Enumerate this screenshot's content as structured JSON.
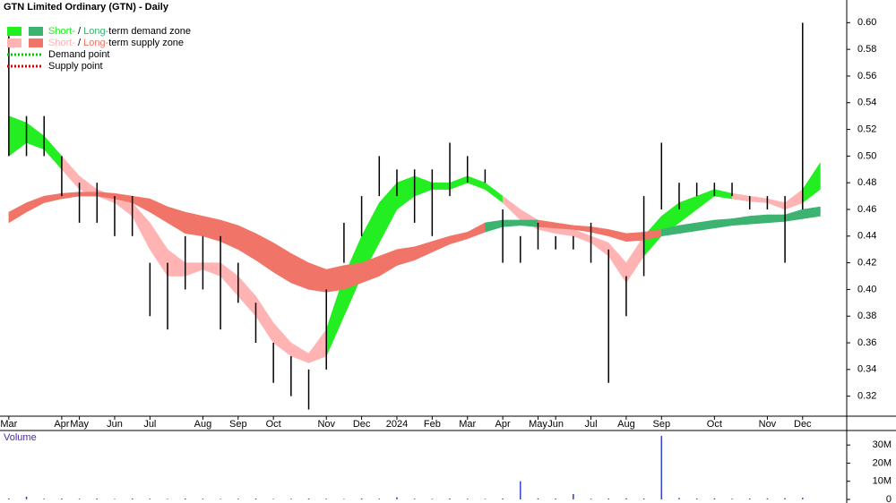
{
  "chart_data": {
    "type": "stock",
    "title": "GTN Limited Ordinary (GTN) - Daily",
    "categories": [
      "Mar",
      null,
      null,
      "Apr",
      "May",
      null,
      "Jun",
      null,
      "Jul",
      null,
      null,
      "Aug",
      null,
      "Sep",
      null,
      "Oct",
      null,
      null,
      "Nov",
      null,
      "Dec",
      null,
      "2024",
      null,
      "Feb",
      null,
      "Mar",
      null,
      "Apr",
      null,
      "May",
      "Jun",
      null,
      "Jul",
      null,
      "Aug",
      null,
      "Sep",
      null,
      null,
      "Oct",
      null,
      null,
      "Nov",
      null,
      "Dec",
      null,
      null
    ],
    "high": [
      0.59,
      0.53,
      0.53,
      0.5,
      0.48,
      0.48,
      0.47,
      0.47,
      0.42,
      0.42,
      0.44,
      0.44,
      0.44,
      0.42,
      0.39,
      0.36,
      0.35,
      0.34,
      0.4,
      0.45,
      0.47,
      0.5,
      0.49,
      0.49,
      0.49,
      0.51,
      0.5,
      0.49,
      0.46,
      0.44,
      0.45,
      0.44,
      0.44,
      0.45,
      0.43,
      0.41,
      0.47,
      0.51,
      0.48,
      0.48,
      0.48,
      0.48,
      0.47,
      0.47,
      0.47,
      0.6,
      null,
      null
    ],
    "low": [
      0.5,
      0.5,
      0.5,
      0.47,
      0.45,
      0.45,
      0.44,
      0.44,
      0.38,
      0.37,
      0.4,
      0.4,
      0.37,
      0.39,
      0.36,
      0.33,
      0.32,
      0.31,
      0.34,
      0.42,
      0.44,
      0.47,
      0.47,
      0.45,
      0.44,
      0.47,
      0.48,
      0.48,
      0.42,
      0.42,
      0.43,
      0.43,
      0.43,
      0.42,
      0.33,
      0.38,
      0.41,
      0.46,
      0.46,
      0.47,
      0.47,
      0.47,
      0.46,
      0.46,
      0.42,
      0.46,
      null,
      null
    ],
    "bar_color": "#000000",
    "ylim": [
      0.305,
      0.617
    ],
    "yticks": [
      0.32,
      0.34,
      0.36,
      0.38,
      {
        "value": 0.4,
        "label": "0.40"
      },
      0.42,
      0.44,
      0.46,
      0.48,
      {
        "value": 0.5,
        "label": "0.50"
      },
      0.52,
      0.54,
      0.56,
      0.58,
      {
        "value": 0.6,
        "label": "0.60"
      }
    ],
    "zones": [
      {
        "label": "Short-",
        "demand_color": "#22ee22",
        "supply_color": "#ffb3b3",
        "upper": [
          0.53,
          0.525,
          0.515,
          0.5,
          0.485,
          0.475,
          0.47,
          0.465,
          0.45,
          0.43,
          0.42,
          0.42,
          0.42,
          0.41,
          0.395,
          0.375,
          0.36,
          0.352,
          0.37,
          0.41,
          0.44,
          0.465,
          0.48,
          0.485,
          0.48,
          0.48,
          0.485,
          0.48,
          0.47,
          0.46,
          0.452,
          0.447,
          0.445,
          0.44,
          0.435,
          0.42,
          0.44,
          0.455,
          0.465,
          0.47,
          0.475,
          0.472,
          0.47,
          0.468,
          0.465,
          0.475,
          0.495,
          null
        ],
        "lower": [
          0.5,
          0.51,
          0.505,
          0.49,
          0.475,
          0.47,
          0.465,
          0.455,
          0.43,
          0.41,
          0.41,
          0.415,
          0.41,
          0.395,
          0.38,
          0.36,
          0.35,
          0.345,
          0.35,
          0.38,
          0.41,
          0.435,
          0.46,
          0.47,
          0.475,
          0.475,
          0.48,
          0.475,
          0.465,
          0.452,
          0.445,
          0.442,
          0.44,
          0.435,
          0.425,
          0.405,
          0.425,
          0.44,
          0.45,
          0.46,
          0.47,
          0.468,
          0.466,
          0.465,
          0.46,
          0.465,
          0.475,
          null
        ],
        "demand": [
          true,
          true,
          true,
          false,
          false,
          false,
          false,
          false,
          false,
          false,
          false,
          false,
          false,
          false,
          false,
          false,
          false,
          false,
          true,
          true,
          true,
          true,
          true,
          true,
          true,
          true,
          true,
          true,
          false,
          false,
          false,
          false,
          false,
          false,
          false,
          false,
          true,
          true,
          true,
          true,
          true,
          false,
          false,
          false,
          false,
          true,
          true,
          null
        ]
      },
      {
        "label": "Long-",
        "demand_color": "#3cb371",
        "supply_color": "#f07468",
        "upper": [
          0.458,
          0.465,
          0.47,
          0.472,
          0.473,
          0.473,
          0.472,
          0.47,
          0.468,
          0.462,
          0.458,
          0.455,
          0.452,
          0.448,
          0.442,
          0.435,
          0.427,
          0.42,
          0.415,
          0.418,
          0.42,
          0.425,
          0.43,
          0.432,
          0.436,
          0.44,
          0.443,
          0.45,
          0.452,
          0.452,
          0.452,
          0.45,
          0.448,
          0.447,
          0.445,
          0.442,
          0.443,
          0.445,
          0.448,
          0.45,
          0.452,
          0.453,
          0.455,
          0.456,
          0.456,
          0.46,
          0.462,
          null
        ],
        "lower": [
          0.45,
          0.458,
          0.465,
          0.468,
          0.47,
          0.47,
          0.468,
          0.465,
          0.458,
          0.45,
          0.442,
          0.44,
          0.436,
          0.43,
          0.422,
          0.413,
          0.405,
          0.4,
          0.398,
          0.4,
          0.405,
          0.41,
          0.418,
          0.422,
          0.428,
          0.434,
          0.438,
          0.443,
          0.447,
          0.448,
          0.447,
          0.446,
          0.445,
          0.443,
          0.44,
          0.436,
          0.437,
          0.44,
          0.442,
          0.444,
          0.446,
          0.448,
          0.449,
          0.45,
          0.451,
          0.453,
          0.455,
          null
        ],
        "demand": [
          false,
          false,
          false,
          false,
          false,
          false,
          false,
          false,
          false,
          false,
          false,
          false,
          false,
          false,
          false,
          false,
          false,
          false,
          false,
          false,
          false,
          false,
          false,
          false,
          false,
          false,
          false,
          true,
          true,
          true,
          false,
          false,
          false,
          false,
          false,
          false,
          false,
          true,
          true,
          true,
          true,
          true,
          true,
          true,
          true,
          true,
          true,
          null
        ]
      }
    ],
    "legend_sep": " / ",
    "demand_text": "term demand zone",
    "supply_text": "term supply zone",
    "points": [
      {
        "label": "Demand point",
        "color": "#00cc00"
      },
      {
        "label": "Supply point",
        "color": "#dd0000"
      }
    ],
    "volume": {
      "label": "Volume",
      "color": "#3344cc",
      "values": [
        500000,
        1500000,
        400000,
        500000,
        400000,
        500000,
        300000,
        500000,
        400000,
        300000,
        500000,
        400000,
        300000,
        400000,
        500000,
        300000,
        400000,
        500000,
        400000,
        300000,
        500000,
        400000,
        1200000,
        400000,
        300000,
        500000,
        400000,
        300000,
        500000,
        10000000,
        600000,
        500000,
        3000000,
        400000,
        500000,
        600000,
        500000,
        35000000,
        800000,
        500000,
        600000,
        400000,
        500000,
        600000,
        700000,
        900000,
        null,
        null
      ],
      "ylim": [
        0,
        37000000
      ],
      "yticks": [
        0,
        {
          "value": 10000000,
          "label": "10M"
        },
        {
          "value": 20000000,
          "label": "20M"
        },
        {
          "value": 30000000,
          "label": "30M"
        }
      ]
    }
  }
}
